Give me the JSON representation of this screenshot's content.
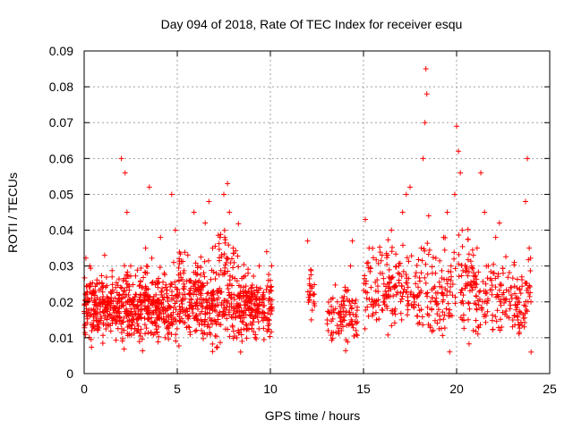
{
  "chart_data": {
    "type": "scatter",
    "title": "Day 094 of 2018, Rate Of TEC Index for receiver esqu",
    "xlabel": "GPS time / hours",
    "ylabel": "ROTI / TECUs",
    "xlim": [
      0,
      25
    ],
    "ylim": [
      0,
      0.09
    ],
    "x_ticks": [
      0,
      5,
      10,
      15,
      20,
      25
    ],
    "x_tick_labels": [
      "0",
      "5",
      "10",
      "15",
      "20",
      "25"
    ],
    "y_ticks": [
      0,
      0.01,
      0.02,
      0.03,
      0.04,
      0.05,
      0.06,
      0.07,
      0.08,
      0.09
    ],
    "y_tick_labels": [
      "0",
      "0.01",
      "0.02",
      "0.03",
      "0.04",
      "0.05",
      "0.06",
      "0.07",
      "0.08",
      "0.09"
    ],
    "grid": true,
    "marker": "+",
    "color": "#ff0000",
    "series": [
      {
        "name": "ROTI",
        "points": [
          [
            0.1,
            0.022
          ],
          [
            0.3,
            0.03
          ],
          [
            0.5,
            0.018
          ],
          [
            0.7,
            0.025
          ],
          [
            0.9,
            0.016
          ],
          [
            1.1,
            0.033
          ],
          [
            1.3,
            0.02
          ],
          [
            1.5,
            0.027
          ],
          [
            1.7,
            0.014
          ],
          [
            1.9,
            0.022
          ],
          [
            2.0,
            0.06
          ],
          [
            2.2,
            0.056
          ],
          [
            2.3,
            0.045
          ],
          [
            2.5,
            0.03
          ],
          [
            2.7,
            0.018
          ],
          [
            2.9,
            0.012
          ],
          [
            3.1,
            0.024
          ],
          [
            3.3,
            0.035
          ],
          [
            3.5,
            0.052
          ],
          [
            3.7,
            0.02
          ],
          [
            3.9,
            0.015
          ],
          [
            4.1,
            0.038
          ],
          [
            4.3,
            0.028
          ],
          [
            4.5,
            0.011
          ],
          [
            4.7,
            0.05
          ],
          [
            4.9,
            0.04
          ],
          [
            5.1,
            0.032
          ],
          [
            5.3,
            0.022
          ],
          [
            5.5,
            0.018
          ],
          [
            5.7,
            0.026
          ],
          [
            5.9,
            0.045
          ],
          [
            6.1,
            0.03
          ],
          [
            6.3,
            0.012
          ],
          [
            6.5,
            0.042
          ],
          [
            6.7,
            0.048
          ],
          [
            6.9,
            0.035
          ],
          [
            7.1,
            0.028
          ],
          [
            7.3,
            0.038
          ],
          [
            7.5,
            0.05
          ],
          [
            7.7,
            0.053
          ],
          [
            7.8,
            0.045
          ],
          [
            8.0,
            0.035
          ],
          [
            8.2,
            0.01
          ],
          [
            8.4,
            0.006
          ],
          [
            8.6,
            0.02
          ],
          [
            8.8,
            0.028
          ],
          [
            9.0,
            0.024
          ],
          [
            9.2,
            0.016
          ],
          [
            9.4,
            0.03
          ],
          [
            9.6,
            0.022
          ],
          [
            9.8,
            0.034
          ],
          [
            10.0,
            0.026
          ],
          [
            10.1,
            0.018
          ],
          [
            12.0,
            0.037
          ],
          [
            12.1,
            0.025
          ],
          [
            12.2,
            0.015
          ],
          [
            12.3,
            0.022
          ],
          [
            13.1,
            0.012
          ],
          [
            13.3,
            0.017
          ],
          [
            13.6,
            0.02
          ],
          [
            13.9,
            0.015
          ],
          [
            14.1,
            0.023
          ],
          [
            14.3,
            0.03
          ],
          [
            14.4,
            0.037
          ],
          [
            14.6,
            0.012
          ],
          [
            15.1,
            0.043
          ],
          [
            15.3,
            0.035
          ],
          [
            15.5,
            0.02
          ],
          [
            15.7,
            0.015
          ],
          [
            15.9,
            0.028
          ],
          [
            16.1,
            0.025
          ],
          [
            16.3,
            0.033
          ],
          [
            16.5,
            0.04
          ],
          [
            16.7,
            0.018
          ],
          [
            16.9,
            0.03
          ],
          [
            17.1,
            0.045
          ],
          [
            17.3,
            0.05
          ],
          [
            17.5,
            0.052
          ],
          [
            17.7,
            0.022
          ],
          [
            17.9,
            0.016
          ],
          [
            18.1,
            0.035
          ],
          [
            18.2,
            0.06
          ],
          [
            18.3,
            0.07
          ],
          [
            18.35,
            0.085
          ],
          [
            18.4,
            0.078
          ],
          [
            18.5,
            0.044
          ],
          [
            18.7,
            0.028
          ],
          [
            18.9,
            0.02
          ],
          [
            19.1,
            0.015
          ],
          [
            19.3,
            0.038
          ],
          [
            19.5,
            0.045
          ],
          [
            19.7,
            0.03
          ],
          [
            19.9,
            0.05
          ],
          [
            20.0,
            0.069
          ],
          [
            20.1,
            0.062
          ],
          [
            20.2,
            0.056
          ],
          [
            20.3,
            0.04
          ],
          [
            20.5,
            0.025
          ],
          [
            20.7,
            0.018
          ],
          [
            20.9,
            0.012
          ],
          [
            21.1,
            0.035
          ],
          [
            21.3,
            0.056
          ],
          [
            21.5,
            0.045
          ],
          [
            21.7,
            0.03
          ],
          [
            21.9,
            0.022
          ],
          [
            22.1,
            0.038
          ],
          [
            22.3,
            0.042
          ],
          [
            22.5,
            0.028
          ],
          [
            22.7,
            0.016
          ],
          [
            22.9,
            0.024
          ],
          [
            23.1,
            0.031
          ],
          [
            23.3,
            0.02
          ],
          [
            23.5,
            0.027
          ],
          [
            23.7,
            0.048
          ],
          [
            23.8,
            0.06
          ],
          [
            23.9,
            0.035
          ],
          [
            24.0,
            0.006
          ]
        ]
      }
    ],
    "cloud_segments": [
      [
        0.0,
        10.1,
        0.018,
        0.006
      ],
      [
        0.0,
        2.0,
        0.02,
        0.006
      ],
      [
        2.0,
        5.0,
        0.019,
        0.007
      ],
      [
        5.0,
        7.2,
        0.022,
        0.008
      ],
      [
        7.2,
        8.3,
        0.03,
        0.01
      ],
      [
        8.3,
        10.1,
        0.019,
        0.006
      ],
      [
        12.0,
        12.4,
        0.022,
        0.006
      ],
      [
        13.0,
        14.7,
        0.017,
        0.005
      ],
      [
        15.0,
        18.0,
        0.024,
        0.008
      ],
      [
        18.0,
        19.6,
        0.022,
        0.009
      ],
      [
        19.6,
        21.0,
        0.025,
        0.01
      ],
      [
        21.0,
        24.0,
        0.021,
        0.007
      ]
    ]
  }
}
